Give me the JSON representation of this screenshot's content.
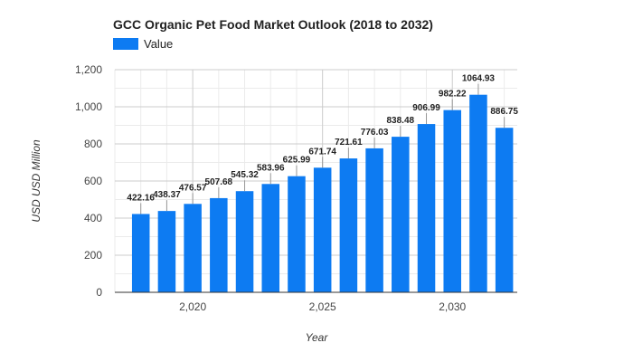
{
  "chart_data": {
    "type": "bar",
    "title": "GCC Organic Pet Food Market Outlook (2018 to 2032)",
    "xlabel": "Year",
    "ylabel": "USD USD Million",
    "legend": {
      "position": "top-left",
      "entries": [
        "Value"
      ]
    },
    "series": [
      {
        "name": "Value",
        "color": "#0d7bf2",
        "x": [
          2018,
          2019,
          2020,
          2021,
          2022,
          2023,
          2024,
          2025,
          2026,
          2027,
          2028,
          2029,
          2030,
          2031,
          2032
        ],
        "values": [
          422.16,
          438.37,
          476.57,
          507.68,
          545.32,
          583.96,
          625.99,
          671.74,
          721.61,
          776.03,
          838.48,
          906.99,
          982.22,
          1064.93,
          886.75
        ],
        "labels": [
          "422.16",
          "438.37",
          "476.57",
          "507.68",
          "545.32",
          "583.96",
          "625.99",
          "671.74",
          "721.61",
          "776.03",
          "838.48",
          "906.99",
          "982.22",
          "1064.93",
          "886.75"
        ]
      }
    ],
    "ylim": [
      0,
      1200
    ],
    "yticks": [
      0,
      200,
      400,
      600,
      800,
      1000,
      1200
    ],
    "ytick_labels": [
      "0",
      "200",
      "400",
      "600",
      "800",
      "1,000",
      "1,200"
    ],
    "xlim": [
      2017,
      2032.5
    ],
    "xticks": [
      2020,
      2025,
      2030
    ],
    "xtick_labels": [
      "2,020",
      "2,025",
      "2,030"
    ],
    "grid": true
  }
}
